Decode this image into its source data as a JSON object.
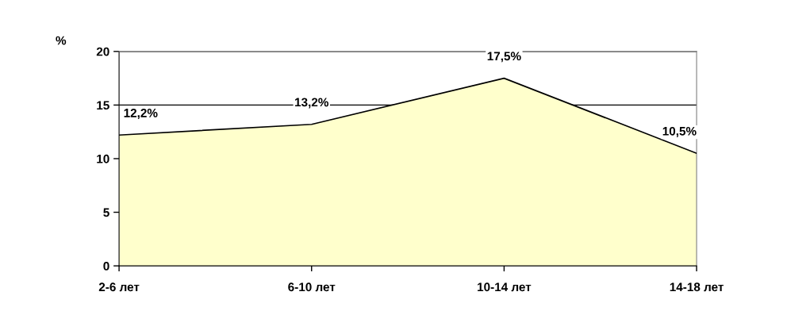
{
  "chart_data": {
    "type": "area",
    "ylabel": "%",
    "categories": [
      "2-6 лет",
      "6-10 лет",
      "10-14 лет",
      "14-18 лет"
    ],
    "series": [
      {
        "color": "#ffffcc",
        "values": [
          12.2,
          13.2,
          17.5,
          10.5
        ]
      }
    ],
    "value_labels": [
      "12,2%",
      "13,2%",
      "17,5%",
      "10,5%"
    ],
    "ylim": [
      0,
      20
    ],
    "yticks": [
      0,
      5,
      10,
      15,
      20
    ],
    "grid": "y"
  }
}
